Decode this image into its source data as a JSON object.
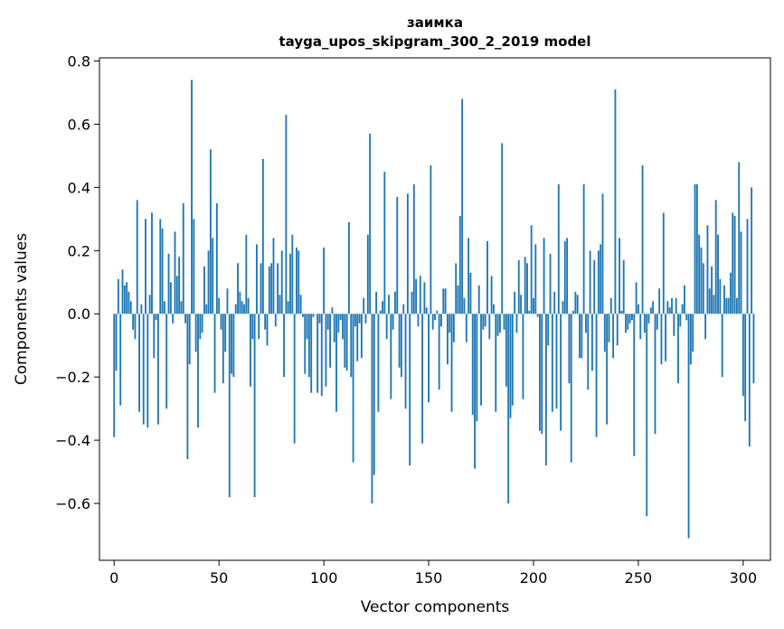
{
  "chart_data": {
    "type": "bar",
    "title": "заимка",
    "subtitle": "tayga_upos_skipgram_300_2_2019 model",
    "xlabel": "Vector components",
    "ylabel": "Components values",
    "xlim": [
      -7,
      313
    ],
    "ylim": [
      -0.78,
      0.81
    ],
    "xticks": [
      0,
      50,
      100,
      150,
      200,
      250,
      300
    ],
    "yticks": [
      -0.6,
      -0.4,
      -0.2,
      0.0,
      0.2,
      0.4,
      0.6,
      0.8
    ],
    "ytick_labels": [
      "−0.6",
      "−0.4",
      "−0.2",
      "0.0",
      "0.2",
      "0.4",
      "0.6",
      "0.8"
    ],
    "xtick_labels": [
      "0",
      "50",
      "100",
      "150",
      "200",
      "250",
      "300"
    ],
    "bar_color": "#1f77b4",
    "grid": false,
    "values": [
      -0.39,
      -0.18,
      0.11,
      -0.29,
      0.14,
      0.09,
      0.1,
      0.07,
      0.04,
      -0.05,
      -0.08,
      0.36,
      -0.31,
      0.03,
      -0.35,
      0.3,
      -0.36,
      0.06,
      0.32,
      -0.14,
      -0.02,
      -0.35,
      0.3,
      0.27,
      0.04,
      -0.3,
      0.19,
      0.1,
      -0.03,
      0.26,
      0.12,
      0.18,
      0.04,
      0.35,
      -0.03,
      -0.46,
      -0.16,
      0.74,
      0.3,
      -0.12,
      -0.36,
      -0.08,
      -0.06,
      0.15,
      0.03,
      0.2,
      0.52,
      0.24,
      -0.25,
      0.35,
      0.05,
      -0.05,
      -0.22,
      -0.12,
      0.08,
      -0.58,
      -0.19,
      -0.2,
      0.03,
      0.16,
      0.07,
      0.04,
      0.03,
      0.25,
      0.05,
      -0.23,
      -0.08,
      -0.58,
      0.22,
      -0.08,
      0.16,
      0.49,
      -0.05,
      -0.1,
      0.15,
      0.16,
      0.24,
      -0.04,
      0.16,
      0.06,
      0.2,
      -0.2,
      0.63,
      0.04,
      0.19,
      0.25,
      -0.41,
      0.21,
      0.2,
      0.06,
      -0.01,
      -0.19,
      -0.08,
      -0.2,
      -0.25,
      -0.01,
      0.0,
      -0.25,
      -0.03,
      -0.26,
      0.21,
      -0.23,
      -0.05,
      -0.17,
      0.02,
      -0.09,
      -0.31,
      -0.06,
      -0.02,
      -0.08,
      -0.17,
      -0.18,
      0.29,
      -0.2,
      -0.47,
      -0.04,
      -0.15,
      -0.03,
      -0.14,
      0.05,
      -0.03,
      0.25,
      0.57,
      -0.6,
      -0.51,
      0.07,
      -0.31,
      0.01,
      0.04,
      0.45,
      -0.08,
      0.06,
      -0.27,
      -0.05,
      0.07,
      0.37,
      -0.17,
      -0.2,
      0.03,
      -0.3,
      0.38,
      -0.48,
      0.07,
      0.41,
      0.11,
      -0.04,
      0.12,
      -0.41,
      0.1,
      0.02,
      -0.28,
      0.47,
      -0.05,
      -0.02,
      0.01,
      -0.24,
      -0.04,
      0.08,
      0.08,
      -0.16,
      -0.06,
      -0.31,
      -0.09,
      0.16,
      0.09,
      0.31,
      0.68,
      0.05,
      -0.09,
      0.24,
      0.13,
      -0.32,
      -0.49,
      -0.34,
      0.09,
      -0.29,
      -0.05,
      -0.04,
      0.23,
      -0.08,
      0.12,
      0.03,
      -0.31,
      -0.07,
      -0.06,
      0.54,
      -0.05,
      -0.23,
      -0.6,
      -0.33,
      -0.29,
      0.07,
      -0.06,
      0.17,
      0.06,
      -0.27,
      0.18,
      0.16,
      0.01,
      0.28,
      0.05,
      0.22,
      -0.01,
      -0.37,
      -0.38,
      0.24,
      -0.48,
      -0.1,
      0.19,
      -0.31,
      0.07,
      -0.3,
      0.41,
      -0.37,
      0.04,
      0.23,
      0.24,
      -0.22,
      -0.47,
      0.01,
      0.07,
      0.06,
      -0.14,
      -0.14,
      0.41,
      -0.06,
      -0.24,
      0.2,
      -0.18,
      0.17,
      -0.39,
      0.2,
      0.22,
      0.38,
      -0.12,
      -0.35,
      -0.09,
      0.05,
      -0.14,
      0.71,
      -0.1,
      0.24,
      0.01,
      0.17,
      -0.06,
      -0.05,
      -0.03,
      -0.02,
      -0.45,
      0.1,
      0.03,
      -0.08,
      0.47,
      -0.06,
      -0.64,
      -0.03,
      0.02,
      0.04,
      -0.38,
      -0.05,
      0.08,
      -0.16,
      0.32,
      -0.15,
      0.04,
      0.02,
      0.05,
      -0.07,
      0.05,
      -0.22,
      -0.04,
      0.03,
      0.09,
      -0.02,
      -0.71,
      -0.16,
      -0.12,
      0.41,
      0.41,
      0.25,
      0.21,
      0.16,
      -0.08,
      0.28,
      0.08,
      0.15,
      0.06,
      0.36,
      0.25,
      0.11,
      -0.2,
      0.09,
      0.05,
      0.05,
      0.13,
      0.32,
      0.31,
      0.05,
      0.48,
      0.26,
      -0.26,
      -0.34,
      0.3,
      -0.42,
      0.4,
      -0.22
    ]
  }
}
